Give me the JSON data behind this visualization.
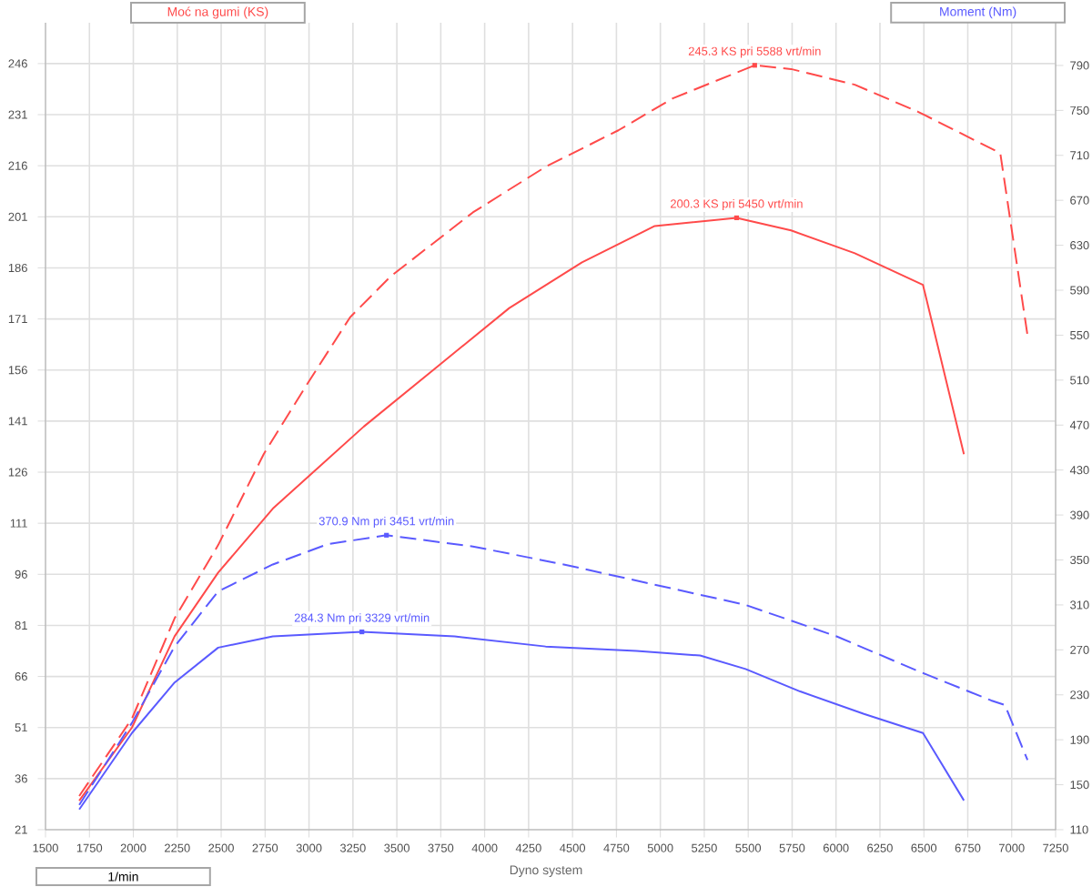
{
  "chart_data": {
    "type": "line",
    "ylabel": "Moć na gumi (KS)",
    "y2label": "Moment (Nm)",
    "xlabel": "1/min",
    "annotations": [
      {
        "text": "245.3 KS pri 5588 vrt/min",
        "x": 5537,
        "y": 245.5
      },
      {
        "text": "200.3 KS pri 5450 vrt/min",
        "x": 5434,
        "y": 200.7
      },
      "370.9 Nm pri 3451 vrt/min",
      "284.3 Nm pri 3329 vrt/min",
      "Dyno system"
    ],
    "series": [
      {
        "color": "#ff4a4a",
        "line_style": "dashed",
        "x": [
          1692,
          1992,
          2235,
          2483,
          2742,
          3001,
          3234,
          3467,
          3933,
          4347,
          4761,
          5071,
          5537,
          5744,
          6107,
          6469,
          6935,
          7090
        ],
        "values": [
          30.9,
          53.6,
          83.1,
          104.6,
          131.3,
          152.8,
          171.5,
          183.6,
          202.3,
          215.7,
          226.4,
          235.8,
          245.5,
          244.4,
          239.8,
          231.8,
          219.7,
          166.2
        ]
      },
      {
        "color": "#ff4a4a",
        "line_style": "solid",
        "x": [
          1692,
          1992,
          2235,
          2483,
          2794,
          3312,
          3726,
          4140,
          4554,
          4968,
          5434,
          5744,
          6107,
          6495,
          6728
        ],
        "values": [
          29.5,
          51,
          77.8,
          96.5,
          115.3,
          139.4,
          156.8,
          174.2,
          187.6,
          198.3,
          200.7,
          197,
          190.3,
          181,
          131.3
        ]
      },
      {
        "color": "#5a5aff",
        "line_style": "dashed",
        "axis": "y2",
        "x": [
          1692,
          1992,
          2235,
          2483,
          2794,
          3105,
          3441,
          3933,
          4450,
          4968,
          5485,
          6003,
          6469,
          6883,
          6961,
          7090
        ],
        "values": [
          132,
          205,
          273,
          322,
          346,
          364,
          372,
          362,
          346,
          328,
          310,
          282,
          251,
          225,
          221,
          172
        ]
      },
      {
        "color": "#5a5aff",
        "line_style": "solid",
        "axis": "y2",
        "x": [
          1692,
          1992,
          2235,
          2483,
          2794,
          3301,
          3829,
          4347,
          4864,
          5226,
          5485,
          5796,
          6159,
          6495,
          6728
        ],
        "values": [
          128,
          196,
          241,
          272,
          282,
          286,
          282,
          273,
          269,
          265,
          253,
          233,
          213,
          196,
          136
        ]
      }
    ],
    "xlim": [
      1500,
      7250
    ],
    "xticks": [
      1500,
      1750,
      2000,
      2250,
      2500,
      2750,
      3000,
      3250,
      3500,
      3750,
      4000,
      4250,
      4500,
      4750,
      5000,
      5250,
      5500,
      5750,
      6000,
      6250,
      6500,
      6750,
      7000,
      7250
    ],
    "ylim": [
      21,
      258
    ],
    "yticks": [
      21,
      36,
      51,
      66,
      81,
      96,
      111,
      126,
      141,
      156,
      171,
      186,
      201,
      216,
      231,
      246
    ],
    "y2lim": [
      110,
      828
    ],
    "y2ticks": [
      110,
      150,
      190,
      230,
      270,
      310,
      350,
      390,
      430,
      470,
      510,
      550,
      590,
      630,
      670,
      710,
      750,
      790
    ],
    "grid": true,
    "marker": "none"
  }
}
